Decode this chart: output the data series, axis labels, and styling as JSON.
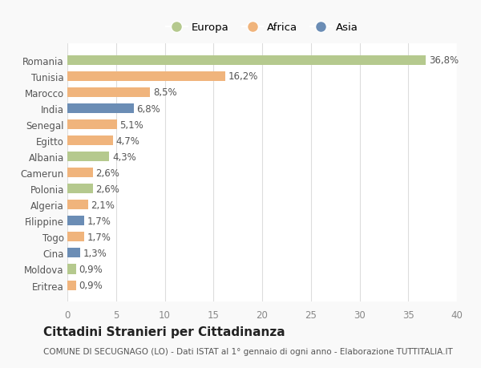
{
  "categories": [
    "Romania",
    "Tunisia",
    "Marocco",
    "India",
    "Senegal",
    "Egitto",
    "Albania",
    "Camerun",
    "Polonia",
    "Algeria",
    "Filippine",
    "Togo",
    "Cina",
    "Moldova",
    "Eritrea"
  ],
  "values": [
    36.8,
    16.2,
    8.5,
    6.8,
    5.1,
    4.7,
    4.3,
    2.6,
    2.6,
    2.1,
    1.7,
    1.7,
    1.3,
    0.9,
    0.9
  ],
  "labels": [
    "36,8%",
    "16,2%",
    "8,5%",
    "6,8%",
    "5,1%",
    "4,7%",
    "4,3%",
    "2,6%",
    "2,6%",
    "2,1%",
    "1,7%",
    "1,7%",
    "1,3%",
    "0,9%",
    "0,9%"
  ],
  "continents": [
    "Europa",
    "Africa",
    "Africa",
    "Asia",
    "Africa",
    "Africa",
    "Europa",
    "Africa",
    "Europa",
    "Africa",
    "Asia",
    "Africa",
    "Asia",
    "Europa",
    "Africa"
  ],
  "colors": {
    "Europa": "#b5c98e",
    "Africa": "#f0b47c",
    "Asia": "#6b8db5"
  },
  "title": "Cittadini Stranieri per Cittadinanza",
  "subtitle": "COMUNE DI SECUGNAGO (LO) - Dati ISTAT al 1° gennaio di ogni anno - Elaborazione TUTTITALIA.IT",
  "xlim": [
    0,
    40
  ],
  "xticks": [
    0,
    5,
    10,
    15,
    20,
    25,
    30,
    35,
    40
  ],
  "background_color": "#f9f9f9",
  "bar_background": "#ffffff",
  "grid_color": "#dddddd",
  "bar_label_fontsize": 8.5,
  "ytick_fontsize": 8.5,
  "xtick_fontsize": 8.5,
  "legend_fontsize": 9.5,
  "title_fontsize": 11,
  "subtitle_fontsize": 7.5,
  "bar_height": 0.6
}
